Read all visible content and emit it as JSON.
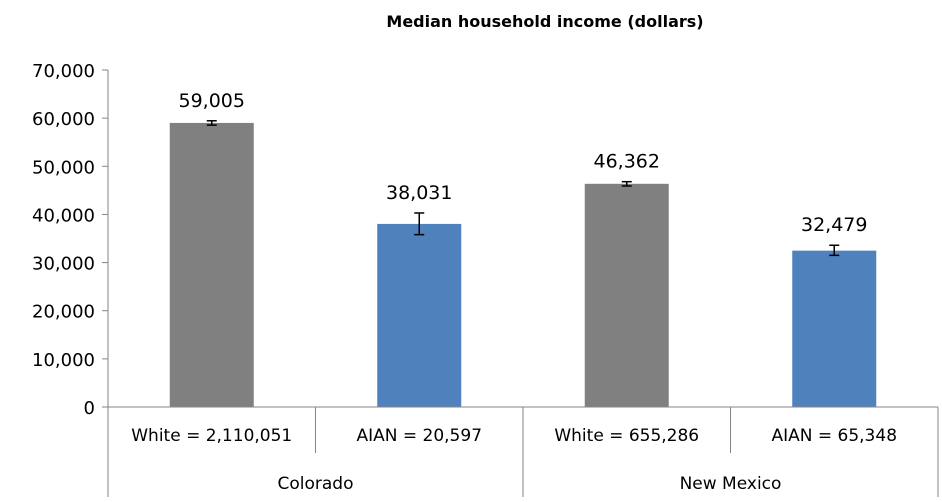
{
  "chart_data": {
    "type": "bar",
    "title": "Median household income (dollars)",
    "ylim": [
      0,
      70000
    ],
    "yticks": [
      0,
      10000,
      20000,
      30000,
      40000,
      50000,
      60000,
      70000
    ],
    "ytick_labels": [
      "0",
      "10,000",
      "20,000",
      "30,000",
      "40,000",
      "50,000",
      "60,000",
      "70,000"
    ],
    "grid": false,
    "groups": [
      "Colorado",
      "New Mexico"
    ],
    "categories": [
      "White = 2,110,051",
      "AIAN = 20,597",
      "White = 655,286",
      "AIAN = 65,348"
    ],
    "category_group": [
      0,
      0,
      1,
      1
    ],
    "values": [
      59005,
      38031,
      46362,
      32479
    ],
    "value_labels": [
      "59,005",
      "38,031",
      "46,362",
      "32,479"
    ],
    "error_low": [
      58550,
      35800,
      45900,
      31500
    ],
    "error_high": [
      59450,
      40300,
      46800,
      33600
    ],
    "bar_colors": [
      "#808080",
      "#4f81bd",
      "#808080",
      "#4f81bd"
    ]
  }
}
